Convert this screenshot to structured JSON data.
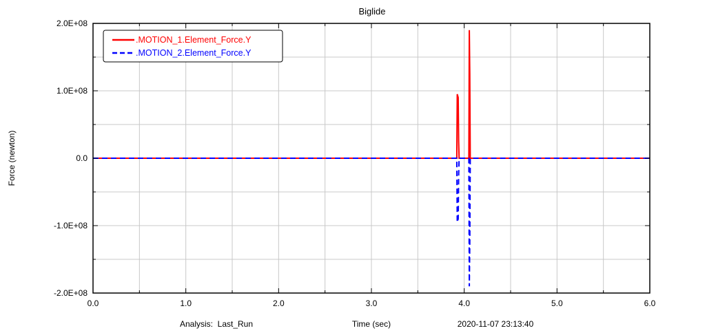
{
  "chart_data": {
    "type": "line",
    "title": "Biglide",
    "xlabel": "Time (sec)",
    "ylabel": "Force (newton)",
    "xlim": [
      0.0,
      6.0
    ],
    "ylim": [
      -200000000,
      200000000
    ],
    "x_ticks": [
      0.0,
      1.0,
      2.0,
      3.0,
      4.0,
      5.0,
      6.0
    ],
    "x_tick_labels": [
      "0.0",
      "1.0",
      "2.0",
      "3.0",
      "4.0",
      "5.0",
      "6.0"
    ],
    "y_ticks": [
      200000000,
      100000000,
      0,
      -100000000,
      -200000000
    ],
    "y_tick_labels": [
      "2.0E+08",
      "1.0E+08",
      "0.0",
      "-1.0E+08",
      "-2.0E+08"
    ],
    "grid": true,
    "x_grid_step": 0.5,
    "y_grid_step": 50000000,
    "legend_position": "top-left",
    "footer": {
      "analysis": "Analysis:  Last_Run",
      "timestamp": "2020-11-07 23:13:40"
    },
    "series": [
      {
        "name": ".MOTION_1.Element_Force.Y",
        "color": "#ff0000",
        "style": "solid",
        "x": [
          0.0,
          3.92,
          3.925,
          3.935,
          3.94,
          3.945,
          3.95,
          3.955,
          4.02,
          4.05,
          4.055,
          4.06,
          4.065,
          4.07,
          4.075,
          6.0
        ],
        "y": [
          0,
          0,
          95000000,
          90000000,
          25000000,
          0,
          0,
          0,
          0,
          0,
          190000000,
          125000000,
          0,
          0,
          0,
          0
        ]
      },
      {
        "name": ".MOTION_2.Element_Force.Y",
        "color": "#0000ff",
        "style": "dashed",
        "x": [
          0.0,
          3.92,
          3.925,
          3.935,
          3.94,
          3.945,
          3.95,
          3.955,
          4.02,
          4.05,
          4.055,
          4.06,
          4.065,
          4.07,
          4.075,
          6.0
        ],
        "y": [
          0,
          0,
          -95000000,
          -90000000,
          -25000000,
          0,
          0,
          0,
          0,
          0,
          -190000000,
          -125000000,
          0,
          0,
          0,
          0
        ]
      }
    ]
  }
}
